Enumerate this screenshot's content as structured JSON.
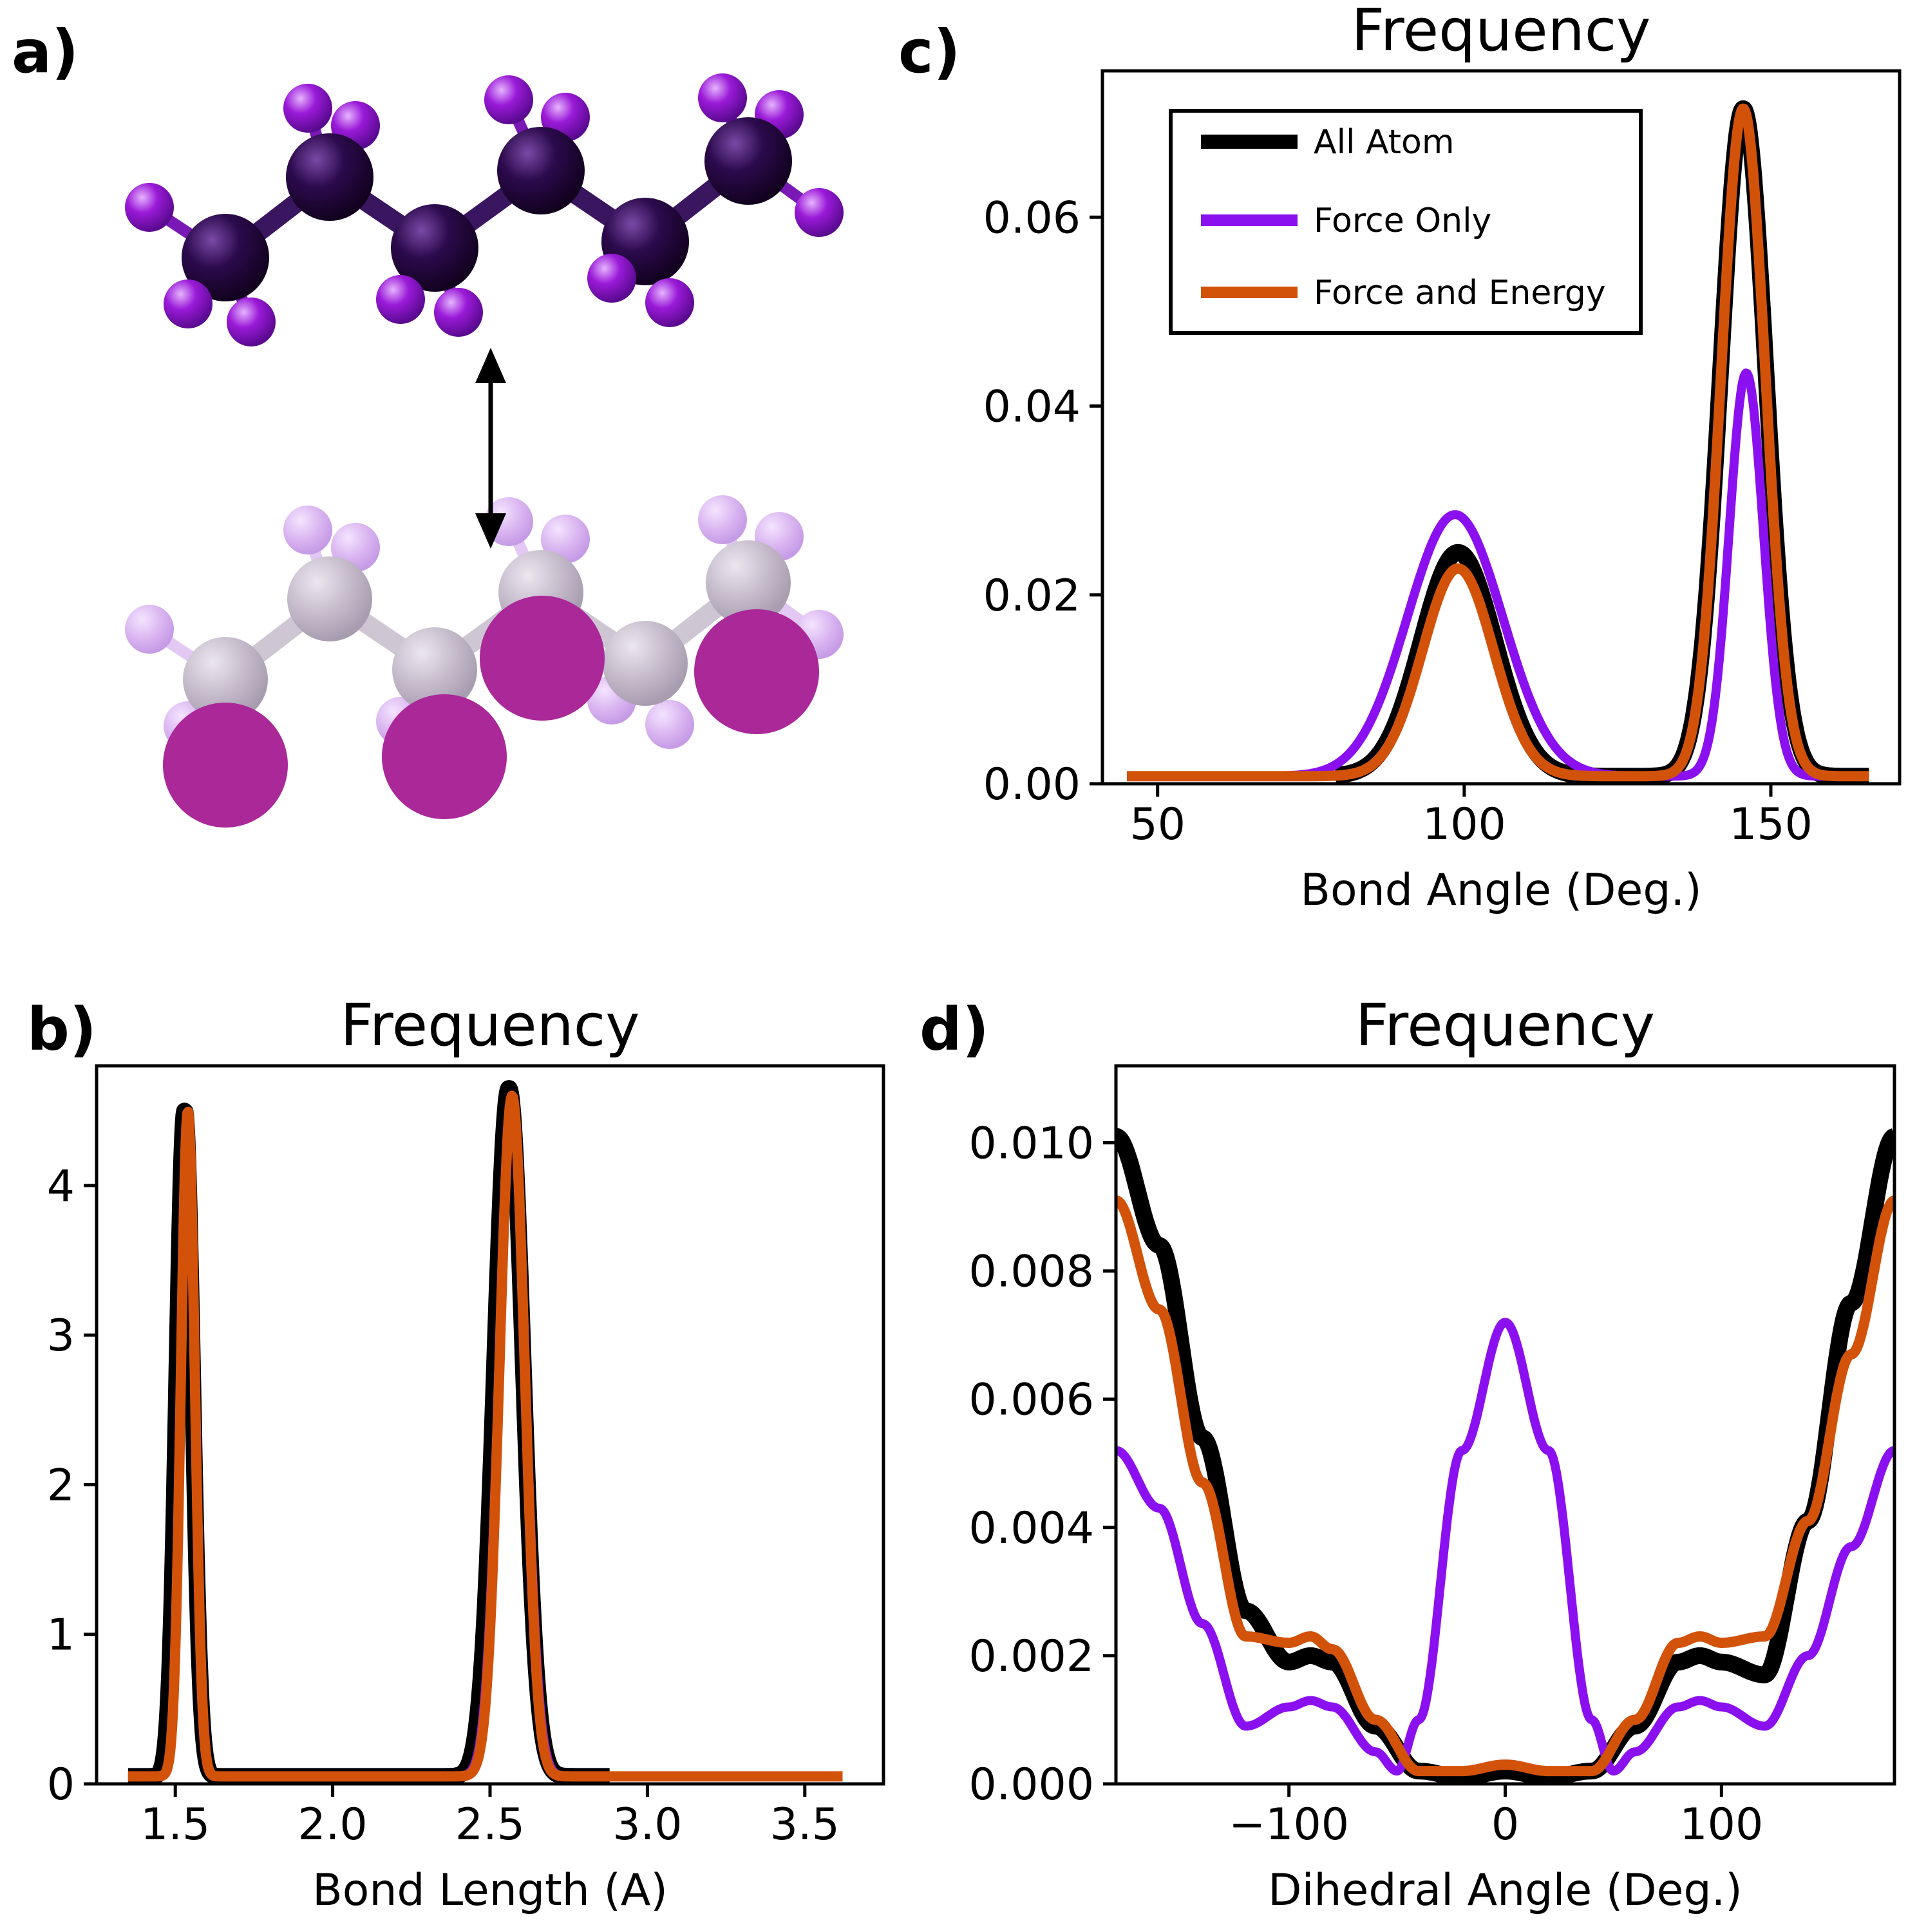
{
  "panel_labels": [
    "a)",
    "b)",
    "c)",
    "d)"
  ],
  "colors": {
    "all_atom": "#000000",
    "force_only": "#8b10f0",
    "force_energy": "#d2520a",
    "carbon_aa": "#2c0a4d",
    "hydrogen_aa": "#9a1ad8",
    "cg_bead": "#aa2898",
    "faded_carbon": "#c2b8c8",
    "faded_hydrogen": "#d9b4f0"
  },
  "legend": [
    "All Atom",
    "Force Only",
    "Force and Energy"
  ],
  "chart_data": [
    {
      "panel": "b)",
      "type": "line",
      "title": "Frequency",
      "xlabel": "Bond Length (A)",
      "ylabel": "",
      "xlim": [
        1.25,
        3.75
      ],
      "ylim": [
        0,
        4.8
      ],
      "xticks": [
        "1.5",
        "2.0",
        "2.5",
        "3.0",
        "3.5"
      ],
      "yticks": [
        "0",
        "1",
        "2",
        "3",
        "4"
      ],
      "xrange": [
        1.35,
        3.62
      ],
      "series": [
        {
          "name": "All Atom",
          "baseline": 0.05,
          "xmax": 2.88,
          "peaks": [
            [
              1.53,
              4.5,
              0.025
            ],
            [
              2.56,
              4.65,
              0.045
            ]
          ]
        },
        {
          "name": "Force Only",
          "baseline": 0.05,
          "xmax": 3.62,
          "peaks": [
            [
              1.54,
              4.5,
              0.022
            ],
            [
              2.57,
              4.55,
              0.042
            ]
          ]
        },
        {
          "name": "Force and Energy",
          "baseline": 0.05,
          "xmax": 3.62,
          "peaks": [
            [
              1.54,
              4.5,
              0.022
            ],
            [
              2.57,
              4.6,
              0.04
            ]
          ]
        }
      ]
    },
    {
      "panel": "c)",
      "type": "line",
      "title": "Frequency",
      "xlabel": "Bond Angle (Deg.)",
      "ylabel": "",
      "xlim": [
        41,
        171
      ],
      "ylim": [
        0,
        0.0755
      ],
      "xticks": [
        "50",
        "100",
        "150"
      ],
      "yticks": [
        "0.00",
        "0.02",
        "0.04",
        "0.06"
      ],
      "series": [
        {
          "name": "All Atom",
          "baseline": 0.0008,
          "xmin": 79,
          "xmax": 166,
          "peaks": [
            [
              99,
              0.0245,
              6.0
            ],
            [
              145.5,
              0.0715,
              3.7
            ]
          ]
        },
        {
          "name": "Force Only",
          "baseline": 0.0008,
          "xmin": 45,
          "xmax": 166,
          "peaks": [
            [
              98.5,
              0.0285,
              7.8
            ],
            [
              146,
              0.0435,
              2.8
            ]
          ]
        },
        {
          "name": "Force and Energy",
          "baseline": 0.0008,
          "xmin": 45,
          "xmax": 166,
          "peaks": [
            [
              99,
              0.0228,
              5.8
            ],
            [
              145.5,
              0.0715,
              3.6
            ]
          ]
        }
      ]
    },
    {
      "panel": "d)",
      "type": "line",
      "title": "Frequency",
      "xlabel": "Dihedral Angle (Deg.)",
      "ylabel": "",
      "xlim": [
        -180,
        180
      ],
      "ylim": [
        0,
        0.0112
      ],
      "xticks": [
        "−100",
        "0",
        "100"
      ],
      "yticks": [
        "0.000",
        "0.002",
        "0.004",
        "0.006",
        "0.008",
        "0.010"
      ],
      "series": [
        {
          "name": "All Atom",
          "x": [
            -180,
            -160,
            -140,
            -120,
            -100,
            -90,
            -80,
            -60,
            -40,
            -20,
            0,
            20,
            40,
            60,
            80,
            90,
            100,
            120,
            140,
            160,
            180
          ],
          "y": [
            0.0101,
            0.0084,
            0.0054,
            0.0027,
            0.0019,
            0.002,
            0.0019,
            0.0009,
            0.0002,
            0.0001,
            0.0002,
            0.0001,
            0.0002,
            0.0009,
            0.0019,
            0.002,
            0.0019,
            0.0017,
            0.0041,
            0.0075,
            0.0101
          ]
        },
        {
          "name": "Force Only",
          "x": [
            -180,
            -160,
            -140,
            -120,
            -100,
            -90,
            -80,
            -60,
            -50,
            -40,
            -20,
            0,
            20,
            40,
            50,
            60,
            80,
            90,
            100,
            120,
            140,
            160,
            180
          ],
          "y": [
            0.0052,
            0.0043,
            0.0025,
            0.0009,
            0.0012,
            0.0013,
            0.0012,
            0.0005,
            0.0002,
            0.001,
            0.0052,
            0.0072,
            0.0052,
            0.001,
            0.0002,
            0.0005,
            0.0012,
            0.0013,
            0.0012,
            0.0009,
            0.002,
            0.0037,
            0.0052
          ]
        },
        {
          "name": "Force and Energy",
          "x": [
            -180,
            -160,
            -140,
            -120,
            -100,
            -90,
            -80,
            -60,
            -40,
            -20,
            0,
            20,
            40,
            60,
            80,
            90,
            100,
            120,
            140,
            160,
            180
          ],
          "y": [
            0.0091,
            0.0074,
            0.0047,
            0.0023,
            0.0022,
            0.0023,
            0.0021,
            0.001,
            0.0002,
            0.0002,
            0.0003,
            0.0002,
            0.0002,
            0.001,
            0.0022,
            0.0023,
            0.0022,
            0.0023,
            0.0041,
            0.0067,
            0.0091
          ]
        }
      ]
    }
  ]
}
